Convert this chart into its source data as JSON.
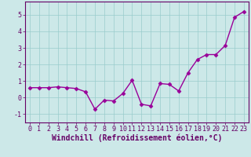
{
  "x": [
    0,
    1,
    2,
    3,
    4,
    5,
    6,
    7,
    8,
    9,
    10,
    11,
    12,
    13,
    14,
    15,
    16,
    17,
    18,
    19,
    20,
    21,
    22,
    23
  ],
  "y": [
    0.6,
    0.6,
    0.6,
    0.65,
    0.6,
    0.55,
    0.35,
    -0.7,
    -0.15,
    -0.2,
    0.25,
    1.05,
    -0.4,
    -0.5,
    0.85,
    0.8,
    0.4,
    1.5,
    2.3,
    2.6,
    2.6,
    3.15,
    4.85,
    5.2
  ],
  "line_color": "#990099",
  "marker": "D",
  "markersize": 2.5,
  "linewidth": 1.0,
  "xlabel": "Windchill (Refroidissement éolien,°C)",
  "xlabel_fontsize": 7.0,
  "xtick_labels": [
    "0",
    "1",
    "2",
    "3",
    "4",
    "5",
    "6",
    "7",
    "8",
    "9",
    "10",
    "11",
    "12",
    "13",
    "14",
    "15",
    "16",
    "17",
    "18",
    "19",
    "20",
    "21",
    "22",
    "23"
  ],
  "yticks": [
    -1,
    0,
    1,
    2,
    3,
    4,
    5
  ],
  "ylim": [
    -1.5,
    5.8
  ],
  "xlim": [
    -0.5,
    23.5
  ],
  "bg_color": "#cce8e8",
  "grid_color": "#99cccc",
  "tick_color": "#660066",
  "tick_fontsize": 6.0,
  "spine_color": "#660066",
  "xlabel_bold": true
}
